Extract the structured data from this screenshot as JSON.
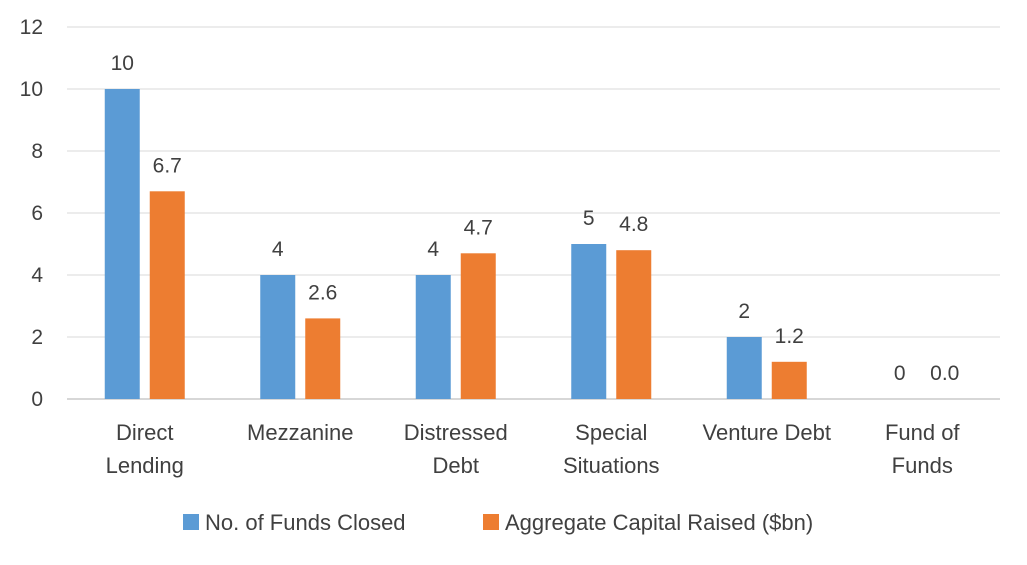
{
  "chart_data": {
    "type": "bar",
    "title": "",
    "xlabel": "",
    "ylabel": "",
    "ylim": [
      0,
      12
    ],
    "yticks": [
      0,
      2,
      4,
      6,
      8,
      10,
      12
    ],
    "grid": true,
    "legend_position": "bottom",
    "categories": [
      [
        "Direct",
        "Lending"
      ],
      [
        "Mezzanine"
      ],
      [
        "Distressed",
        "Debt"
      ],
      [
        "Special",
        "Situations"
      ],
      [
        "Venture Debt"
      ],
      [
        "Fund of",
        "Funds"
      ]
    ],
    "series": [
      {
        "name": "No. of Funds Closed",
        "color": "#5b9bd5",
        "values": [
          10,
          4,
          4,
          5,
          2,
          0
        ],
        "labels": [
          "10",
          "4",
          "4",
          "5",
          "2",
          "0"
        ]
      },
      {
        "name": "Aggregate Capital Raised ($bn)",
        "color": "#ed7d31",
        "values": [
          6.7,
          2.6,
          4.7,
          4.8,
          1.2,
          0.0
        ],
        "labels": [
          "6.7",
          "2.6",
          "4.7",
          "4.8",
          "1.2",
          "0.0"
        ]
      }
    ]
  }
}
